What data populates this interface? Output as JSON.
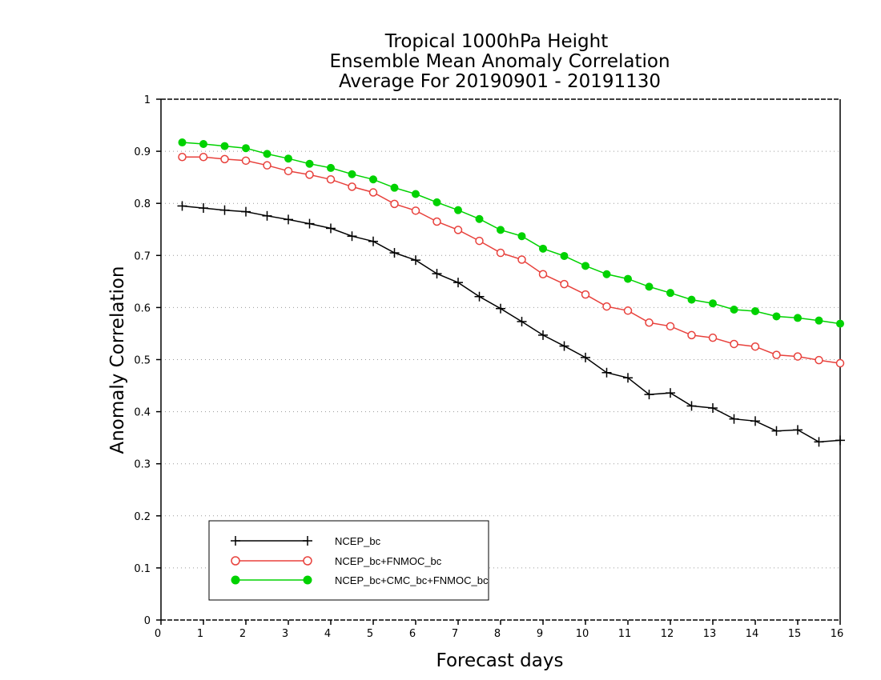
{
  "chart_data": {
    "type": "line",
    "title": [
      "Tropical 1000hPa Height",
      "Ensemble Mean Anomaly Correlation",
      "Average For 20190901 - 20191130"
    ],
    "xlabel": "Forecast days",
    "ylabel": "Anomaly Correlation",
    "xlim": [
      0,
      16
    ],
    "ylim": [
      0,
      1
    ],
    "xticks": [
      "0",
      "1",
      "2",
      "3",
      "4",
      "5",
      "6",
      "7",
      "8",
      "9",
      "10",
      "11",
      "12",
      "13",
      "14",
      "15",
      "16"
    ],
    "yticks": [
      "0",
      "0.1",
      "0.2",
      "0.3",
      "0.4",
      "0.5",
      "0.6",
      "0.7",
      "0.8",
      "0.9",
      "1"
    ],
    "grid": "horizontal dotted",
    "legend_position": "bottom-left",
    "x": [
      0.5,
      1,
      1.5,
      2,
      2.5,
      3,
      3.5,
      4,
      4.5,
      5,
      5.5,
      6,
      6.5,
      7,
      7.5,
      8,
      8.5,
      9,
      9.5,
      10,
      10.5,
      11,
      11.5,
      12,
      12.5,
      13,
      13.5,
      14,
      14.5,
      15,
      15.5,
      16
    ],
    "series": [
      {
        "name": "NCEP_bc",
        "color": "#000000",
        "marker": "plus",
        "values": [
          0.795,
          0.791,
          0.787,
          0.784,
          0.776,
          0.769,
          0.761,
          0.752,
          0.737,
          0.727,
          0.705,
          0.691,
          0.665,
          0.648,
          0.621,
          0.598,
          0.573,
          0.547,
          0.526,
          0.504,
          0.475,
          0.465,
          0.433,
          0.436,
          0.411,
          0.407,
          0.386,
          0.382,
          0.363,
          0.365,
          0.342,
          0.345
        ]
      },
      {
        "name": "NCEP_bc+FNMOC_bc",
        "color": "#e8413c",
        "marker": "open-circle",
        "values": [
          0.889,
          0.889,
          0.885,
          0.882,
          0.873,
          0.862,
          0.855,
          0.846,
          0.832,
          0.821,
          0.799,
          0.786,
          0.765,
          0.749,
          0.728,
          0.705,
          0.692,
          0.664,
          0.645,
          0.625,
          0.602,
          0.594,
          0.571,
          0.564,
          0.547,
          0.542,
          0.53,
          0.525,
          0.509,
          0.506,
          0.499,
          0.493
        ]
      },
      {
        "name": "NCEP_bc+CMC_bc+FNMOC_bc",
        "color": "#00d200",
        "marker": "filled-circle",
        "values": [
          0.917,
          0.914,
          0.91,
          0.906,
          0.895,
          0.886,
          0.876,
          0.868,
          0.856,
          0.846,
          0.83,
          0.818,
          0.802,
          0.787,
          0.77,
          0.749,
          0.737,
          0.713,
          0.699,
          0.68,
          0.664,
          0.655,
          0.64,
          0.628,
          0.615,
          0.608,
          0.596,
          0.593,
          0.583,
          0.58,
          0.575,
          0.569
        ]
      }
    ]
  }
}
